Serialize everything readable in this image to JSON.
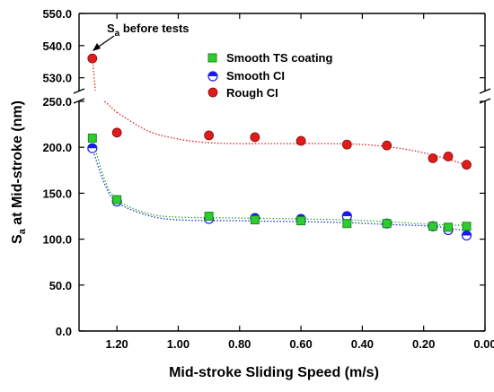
{
  "chart_data": {
    "type": "scatter",
    "xlabel": "Mid-stroke Sliding Speed (m/s)",
    "ylabel_main": "S",
    "ylabel_sub": "a",
    "ylabel_rest": " at Mid-stroke (nm)",
    "x_reversed": true,
    "xlim": [
      1.3,
      0.0
    ],
    "x_ticks": [
      {
        "v": 1.2,
        "label": "1.20"
      },
      {
        "v": 1.0,
        "label": "1.00"
      },
      {
        "v": 0.8,
        "label": "0.80"
      },
      {
        "v": 0.6,
        "label": "0.60"
      },
      {
        "v": 0.4,
        "label": "0.40"
      },
      {
        "v": 0.2,
        "label": "0.20"
      },
      {
        "v": 0.0,
        "label": "0.00"
      }
    ],
    "y_break": true,
    "y_lower_range": [
      0,
      250
    ],
    "y_upper_range": [
      526,
      550
    ],
    "y_ticks_lower": [
      {
        "v": 0,
        "label": "0.0"
      },
      {
        "v": 50,
        "label": "50.0"
      },
      {
        "v": 100,
        "label": "100.0"
      },
      {
        "v": 150,
        "label": "150.0"
      },
      {
        "v": 200,
        "label": "200.0"
      },
      {
        "v": 250,
        "label": "250.0"
      }
    ],
    "y_ticks_upper": [
      {
        "v": 530,
        "label": "530.0"
      },
      {
        "v": 540,
        "label": "540.0"
      },
      {
        "v": 550,
        "label": "550.0"
      }
    ],
    "annotation": {
      "main": "S",
      "sub": "a",
      "rest": " before tests",
      "x": 1.28,
      "y": 536
    },
    "legend_position": "top-right",
    "series": [
      {
        "name": "Smooth TS coating",
        "marker": "square",
        "color": "#2ecc2e",
        "trend_color": "#33aa33",
        "x": [
          1.28,
          1.2,
          0.9,
          0.75,
          0.6,
          0.45,
          0.32,
          0.17,
          0.12,
          0.06
        ],
        "y": [
          210,
          143,
          125,
          121,
          120,
          117,
          117,
          114,
          113,
          114
        ],
        "trend": [
          [
            1.28,
            210
          ],
          [
            1.24,
            165
          ],
          [
            1.2,
            143
          ],
          [
            1.1,
            128
          ],
          [
            1.0,
            124
          ],
          [
            0.8,
            123
          ],
          [
            0.6,
            122
          ],
          [
            0.45,
            121
          ],
          [
            0.32,
            119
          ],
          [
            0.17,
            116
          ],
          [
            0.06,
            115
          ]
        ]
      },
      {
        "name": "Smooth CI",
        "marker": "half-circle",
        "color": "#1a1aee",
        "trend_color": "#2233cc",
        "x": [
          1.28,
          1.2,
          0.9,
          0.75,
          0.6,
          0.45,
          0.32,
          0.17,
          0.12,
          0.06
        ],
        "y": [
          199,
          141,
          122,
          123,
          122,
          125,
          117,
          114,
          110,
          104
        ],
        "trend": [
          [
            1.28,
            199
          ],
          [
            1.24,
            160
          ],
          [
            1.2,
            140
          ],
          [
            1.1,
            126
          ],
          [
            1.0,
            121
          ],
          [
            0.8,
            120
          ],
          [
            0.6,
            119
          ],
          [
            0.45,
            118
          ],
          [
            0.32,
            116
          ],
          [
            0.17,
            114
          ],
          [
            0.06,
            109
          ]
        ]
      },
      {
        "name": "Rough CI",
        "marker": "circle",
        "color": "#e01b1b",
        "trend_color": "#e02020",
        "x": [
          1.2,
          0.9,
          0.75,
          0.6,
          0.45,
          0.32,
          0.17,
          0.12,
          0.06
        ],
        "y": [
          216,
          213,
          211,
          207,
          203,
          202,
          188,
          190,
          181
        ],
        "trend": [
          [
            1.2,
            238
          ],
          [
            1.1,
            218
          ],
          [
            1.0,
            209
          ],
          [
            0.9,
            205
          ],
          [
            0.8,
            204
          ],
          [
            0.7,
            204
          ],
          [
            0.6,
            204
          ],
          [
            0.5,
            204
          ],
          [
            0.4,
            203
          ],
          [
            0.3,
            200
          ],
          [
            0.2,
            194
          ],
          [
            0.1,
            185
          ],
          [
            0.06,
            180
          ]
        ]
      }
    ],
    "rough_ci_initial": {
      "x": 1.28,
      "y": 536
    },
    "rough_ci_connector": [
      [
        1.28,
        536
      ],
      [
        1.27,
        526
      ]
    ],
    "rough_ci_lower_start": [
      [
        1.24,
        250
      ],
      [
        1.22,
        244
      ],
      [
        1.2,
        238
      ]
    ]
  }
}
